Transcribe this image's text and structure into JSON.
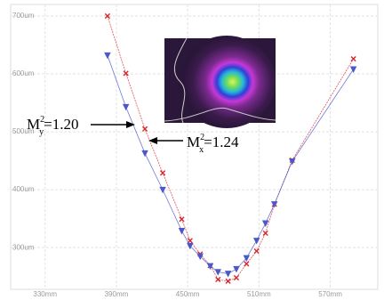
{
  "chart_data": {
    "type": "line",
    "xlim": [
      301,
      610
    ],
    "ylim": [
      228,
      720
    ],
    "xticks": [
      {
        "value": 330,
        "label": "330mm"
      },
      {
        "value": 390,
        "label": "390mm"
      },
      {
        "value": 450,
        "label": "450mm"
      },
      {
        "value": 510,
        "label": "510mm"
      },
      {
        "value": 570,
        "label": "570mm"
      }
    ],
    "yticks": [
      {
        "value": 300,
        "label": "300um"
      },
      {
        "value": 400,
        "label": "400um"
      },
      {
        "value": 500,
        "label": "500um"
      },
      {
        "value": 600,
        "label": "600um"
      },
      {
        "value": 700,
        "label": "700um"
      }
    ],
    "grid": true,
    "x": [
      382.5,
      398,
      414,
      429,
      445,
      452,
      460.5,
      469,
      475.5,
      484,
      491,
      499.5,
      508,
      515.5,
      523,
      538,
      589.5
    ],
    "series": [
      {
        "color": "#d8262c",
        "marker": "x",
        "values": [
          700,
          601,
          505,
          429,
          349,
          312,
          289,
          269,
          245,
          242,
          248,
          272,
          294,
          325,
          375,
          451,
          626
        ]
      },
      {
        "color": "#4a58cc",
        "marker": "v",
        "values": [
          632,
          543,
          463,
          400,
          329,
          303,
          285,
          268,
          258,
          255,
          263,
          282,
          312,
          342,
          375,
          449,
          608
        ]
      }
    ],
    "annotations": [
      {
        "base": "M",
        "sup": "2",
        "sub": "y",
        "text": "=1.20"
      },
      {
        "base": "M",
        "sup": "2",
        "sub": "x",
        "text": "=1.24"
      }
    ]
  }
}
